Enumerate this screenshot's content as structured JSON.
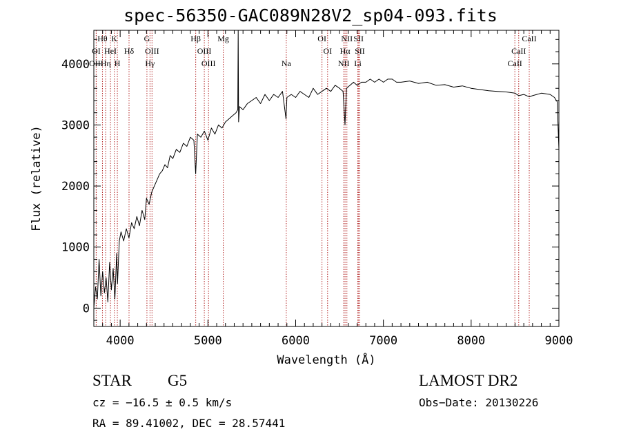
{
  "chart_data": {
    "type": "line",
    "title": "spec-56350-GAC089N28V2_sp04-093.fits",
    "xlabel": "Wavelength (Å)",
    "ylabel": "Flux (relative)",
    "xlim": [
      3700,
      9000
    ],
    "ylim": [
      -300,
      4550
    ],
    "x_ticks": [
      4000,
      5000,
      6000,
      7000,
      8000,
      9000
    ],
    "y_ticks": [
      0,
      1000,
      2000,
      3000,
      4000
    ],
    "series": [
      {
        "x": [
          3700,
          3720,
          3740,
          3760,
          3780,
          3800,
          3820,
          3840,
          3860,
          3880,
          3900,
          3920,
          3940,
          3960,
          3970,
          3990,
          4010,
          4040,
          4070,
          4100,
          4130,
          4160,
          4190,
          4220,
          4250,
          4280,
          4300,
          4330,
          4360,
          4390,
          4420,
          4450,
          4480,
          4510,
          4540,
          4570,
          4600,
          4640,
          4680,
          4720,
          4760,
          4800,
          4840,
          4861,
          4880,
          4920,
          4960,
          5000,
          5040,
          5080,
          5120,
          5160,
          5200,
          5240,
          5280,
          5320,
          5340,
          5345,
          5350,
          5360,
          5400,
          5450,
          5500,
          5550,
          5600,
          5650,
          5700,
          5750,
          5800,
          5850,
          5890,
          5900,
          5950,
          6000,
          6050,
          6100,
          6150,
          6200,
          6250,
          6300,
          6350,
          6400,
          6450,
          6500,
          6540,
          6562,
          6580,
          6620,
          6660,
          6700,
          6750,
          6800,
          6850,
          6900,
          6950,
          7000,
          7050,
          7100,
          7150,
          7200,
          7300,
          7400,
          7500,
          7600,
          7700,
          7800,
          7900,
          8000,
          8100,
          8200,
          8300,
          8400,
          8500,
          8542,
          8600,
          8662,
          8700,
          8800,
          8900,
          8950,
          8980,
          9000
        ],
        "y": [
          0,
          350,
          150,
          800,
          200,
          600,
          250,
          500,
          100,
          750,
          300,
          650,
          150,
          900,
          400,
          1100,
          1250,
          1100,
          1300,
          1150,
          1400,
          1300,
          1500,
          1350,
          1600,
          1450,
          1800,
          1700,
          1900,
          2000,
          2100,
          2200,
          2250,
          2350,
          2300,
          2500,
          2450,
          2600,
          2550,
          2700,
          2650,
          2800,
          2750,
          2200,
          2850,
          2800,
          2900,
          2750,
          2950,
          2850,
          3000,
          2950,
          3050,
          3100,
          3150,
          3200,
          3250,
          4550,
          3050,
          3300,
          3250,
          3350,
          3400,
          3450,
          3350,
          3500,
          3400,
          3500,
          3450,
          3550,
          3100,
          3450,
          3500,
          3450,
          3550,
          3500,
          3450,
          3600,
          3500,
          3550,
          3600,
          3550,
          3650,
          3600,
          3550,
          3000,
          3600,
          3650,
          3700,
          3650,
          3700,
          3700,
          3750,
          3700,
          3750,
          3700,
          3750,
          3750,
          3700,
          3700,
          3720,
          3680,
          3700,
          3650,
          3660,
          3620,
          3640,
          3600,
          3580,
          3560,
          3550,
          3540,
          3520,
          3480,
          3500,
          3460,
          3480,
          3520,
          3500,
          3450,
          3380,
          2600
        ]
      }
    ],
    "line_markers": [
      {
        "name": "Hθ",
        "row": 0,
        "x": 3798
      },
      {
        "name": "K",
        "row": 0,
        "x": 3934
      },
      {
        "name": "G",
        "row": 0,
        "x": 4305
      },
      {
        "name": "Hβ",
        "row": 0,
        "x": 4861
      },
      {
        "name": "Mg",
        "row": 0,
        "x": 5175
      },
      {
        "name": "OI",
        "row": 0,
        "x": 6300
      },
      {
        "name": "NII",
        "row": 0,
        "x": 6584
      },
      {
        "name": "SII",
        "row": 0,
        "x": 6717
      },
      {
        "name": "CaII",
        "row": 0,
        "x": 8662
      },
      {
        "name": "OI",
        "row": 1,
        "x": 3727
      },
      {
        "name": "HeI",
        "row": 1,
        "x": 3889
      },
      {
        "name": "Hδ",
        "row": 1,
        "x": 4101
      },
      {
        "name": "OIII",
        "row": 1,
        "x": 4363
      },
      {
        "name": "OIII",
        "row": 1,
        "x": 4959
      },
      {
        "name": "OI",
        "row": 1,
        "x": 6364
      },
      {
        "name": "Hα",
        "row": 1,
        "x": 6563
      },
      {
        "name": "SII",
        "row": 1,
        "x": 6731
      },
      {
        "name": "CaII",
        "row": 1,
        "x": 8542
      },
      {
        "name": "OIII",
        "row": 2,
        "x": 3727
      },
      {
        "name": "Hη",
        "row": 2,
        "x": 3835
      },
      {
        "name": "H",
        "row": 2,
        "x": 3968
      },
      {
        "name": "Hγ",
        "row": 2,
        "x": 4340
      },
      {
        "name": "OIII",
        "row": 2,
        "x": 5007
      },
      {
        "name": "Na",
        "row": 2,
        "x": 5893
      },
      {
        "name": "NII",
        "row": 2,
        "x": 6548
      },
      {
        "name": "Li",
        "row": 2,
        "x": 6708
      },
      {
        "name": "CaII",
        "row": 2,
        "x": 8498
      }
    ],
    "marker_color": "#b22222",
    "line_color": "#000000",
    "grid": false
  },
  "info": {
    "object_class": "STAR",
    "subclass": "G5",
    "survey": "LAMOST DR2",
    "cz": "cz = −16.5 ± 0.5 km/s",
    "obs_date": "Obs−Date: 20130226",
    "coords": "RA =  89.41002, DEC =  28.57441"
  }
}
